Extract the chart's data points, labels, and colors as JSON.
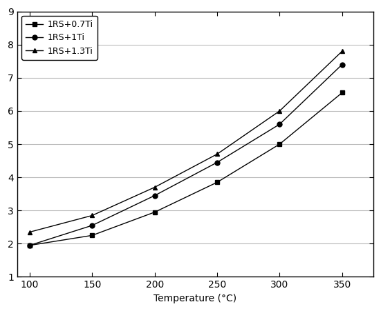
{
  "x": [
    100,
    150,
    200,
    250,
    300,
    350
  ],
  "series": [
    {
      "label": "1RS+0.7Ti",
      "y": [
        1.95,
        2.25,
        2.95,
        3.85,
        5.0,
        6.55
      ],
      "marker": "s",
      "color": "#000000"
    },
    {
      "label": "1RS+1Ti",
      "y": [
        1.95,
        2.55,
        3.45,
        4.45,
        5.6,
        7.4
      ],
      "marker": "o",
      "color": "#000000"
    },
    {
      "label": "1RS+1.3Ti",
      "y": [
        2.35,
        2.85,
        3.7,
        4.7,
        6.0,
        7.8
      ],
      "marker": "^",
      "color": "#000000"
    }
  ],
  "xlabel": "Temperature (°C)",
  "ylim": [
    1,
    9
  ],
  "xlim": [
    90,
    375
  ],
  "yticks": [
    1,
    2,
    3,
    4,
    5,
    6,
    7,
    8,
    9
  ],
  "xticks": [
    100,
    150,
    200,
    250,
    300,
    350
  ],
  "grid_color": "#bbbbbb",
  "background_color": "#ffffff",
  "legend_loc": "upper left"
}
